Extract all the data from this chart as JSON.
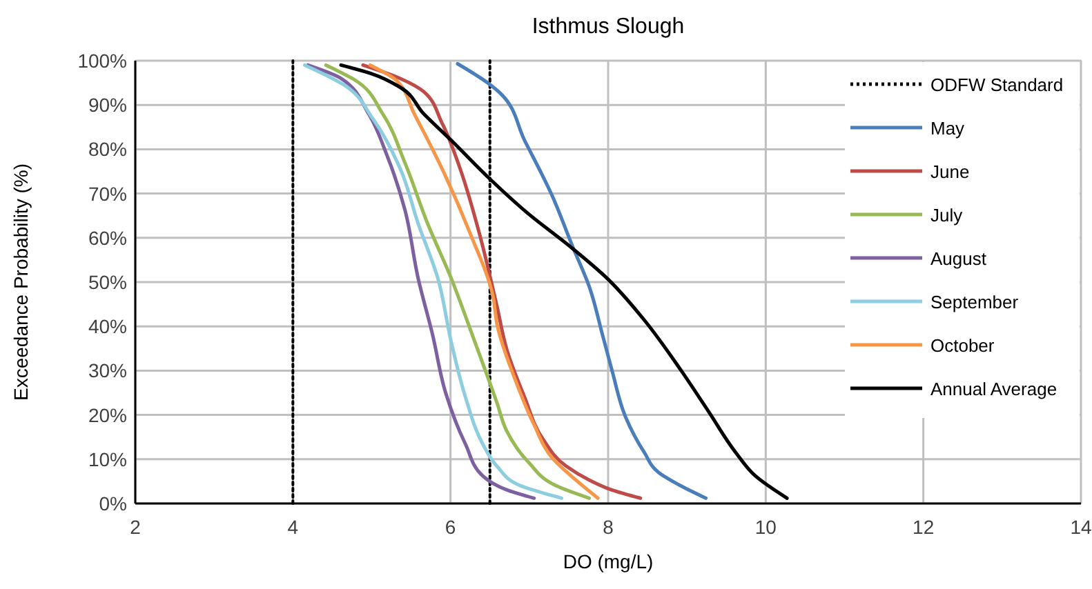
{
  "chart_data": {
    "type": "line",
    "title": "Isthmus Slough",
    "xlabel": "DO (mg/L)",
    "ylabel": "Exceedance Probability (%)",
    "xlim": [
      2,
      14
    ],
    "xticks": [
      2,
      4,
      6,
      8,
      10,
      12,
      14
    ],
    "ylim": [
      0,
      100
    ],
    "yticks": [
      {
        "value": 0,
        "label": "0%"
      },
      {
        "value": 10,
        "label": "10%"
      },
      {
        "value": 20,
        "label": "20%"
      },
      {
        "value": 30,
        "label": "30%"
      },
      {
        "value": 40,
        "label": "40%"
      },
      {
        "value": 50,
        "label": "50%"
      },
      {
        "value": 60,
        "label": "60%"
      },
      {
        "value": 70,
        "label": "70%"
      },
      {
        "value": 80,
        "label": "80%"
      },
      {
        "value": 90,
        "label": "90%"
      },
      {
        "value": 100,
        "label": "100%"
      }
    ],
    "grid": true,
    "legend": "top right",
    "marker": "none",
    "line_style": "solid",
    "series": [
      {
        "name": "ODFW Standard",
        "color": "#000000",
        "line_style": "dotted",
        "x": [
          4,
          4,
          null,
          6.5,
          6.5
        ],
        "values": [
          0,
          100,
          null,
          0,
          100
        ]
      },
      {
        "name": "May",
        "color": "#4a7ebb",
        "x": [
          6.09,
          6.47,
          6.64,
          6.94,
          7.29,
          7.55,
          7.76,
          7.93,
          8.05,
          8.22,
          8.46,
          8.64,
          8.92,
          9.24
        ],
        "values": [
          99.3,
          95,
          92.5,
          82,
          69.5,
          58,
          49,
          38,
          30,
          19.6,
          11.5,
          7,
          4,
          1.2
        ]
      },
      {
        "name": "June",
        "color": "#be4b48",
        "x": [
          4.89,
          5.36,
          5.66,
          5.89,
          6.12,
          6.36,
          6.59,
          6.71,
          6.94,
          7.17,
          7.47,
          7.76,
          8.04,
          8.41
        ],
        "values": [
          99,
          96,
          93,
          86,
          75.7,
          61.4,
          44.5,
          35,
          24,
          14.6,
          8.4,
          5.3,
          3.1,
          1.2
        ]
      },
      {
        "name": "July",
        "color": "#98b954",
        "x": [
          4.42,
          4.79,
          5.14,
          5.42,
          5.71,
          6.01,
          6.29,
          6.59,
          6.71,
          6.99,
          7.34,
          7.76
        ],
        "values": [
          99,
          95.6,
          88,
          77,
          63.2,
          50.8,
          37.4,
          22.7,
          16.5,
          9.3,
          4,
          1.2
        ]
      },
      {
        "name": "August",
        "color": "#7d60a0",
        "x": [
          4.19,
          4.61,
          4.96,
          5.19,
          5.42,
          5.59,
          5.77,
          5.94,
          6.19,
          6.41,
          6.71,
          7.06
        ],
        "values": [
          99,
          96,
          88,
          78.8,
          66.4,
          50.8,
          38.3,
          24.9,
          13.4,
          6.2,
          3.1,
          1.2
        ]
      },
      {
        "name": "September",
        "color": "#8ccde0",
        "x": [
          4.15,
          4.66,
          5.01,
          5.36,
          5.59,
          5.84,
          6.01,
          6.19,
          6.41,
          6.59,
          6.89,
          7.41
        ],
        "values": [
          99,
          94.4,
          87,
          75.7,
          63.2,
          50.8,
          36.4,
          24,
          13.4,
          8.4,
          4,
          1.2
        ]
      },
      {
        "name": "October",
        "color": "#f79646",
        "x": [
          4.98,
          5.31,
          5.54,
          5.89,
          6.24,
          6.54,
          6.59,
          6.82,
          7.06,
          7.29,
          7.59,
          7.87
        ],
        "values": [
          99,
          95.6,
          88,
          75.7,
          61.4,
          46.7,
          40.5,
          28,
          17.8,
          10.3,
          5.3,
          1.2
        ]
      },
      {
        "name": "Annual Average",
        "color": "#000000",
        "x": [
          4.61,
          5.01,
          5.36,
          5.66,
          6.01,
          6.47,
          6.99,
          7.52,
          7.99,
          8.46,
          8.92,
          9.27,
          9.62,
          9.87,
          10.27
        ],
        "values": [
          99,
          97,
          94,
          88,
          82,
          73.8,
          65.4,
          58,
          50.8,
          41.4,
          30.2,
          20.9,
          11.5,
          6.2,
          1.2
        ]
      }
    ]
  }
}
